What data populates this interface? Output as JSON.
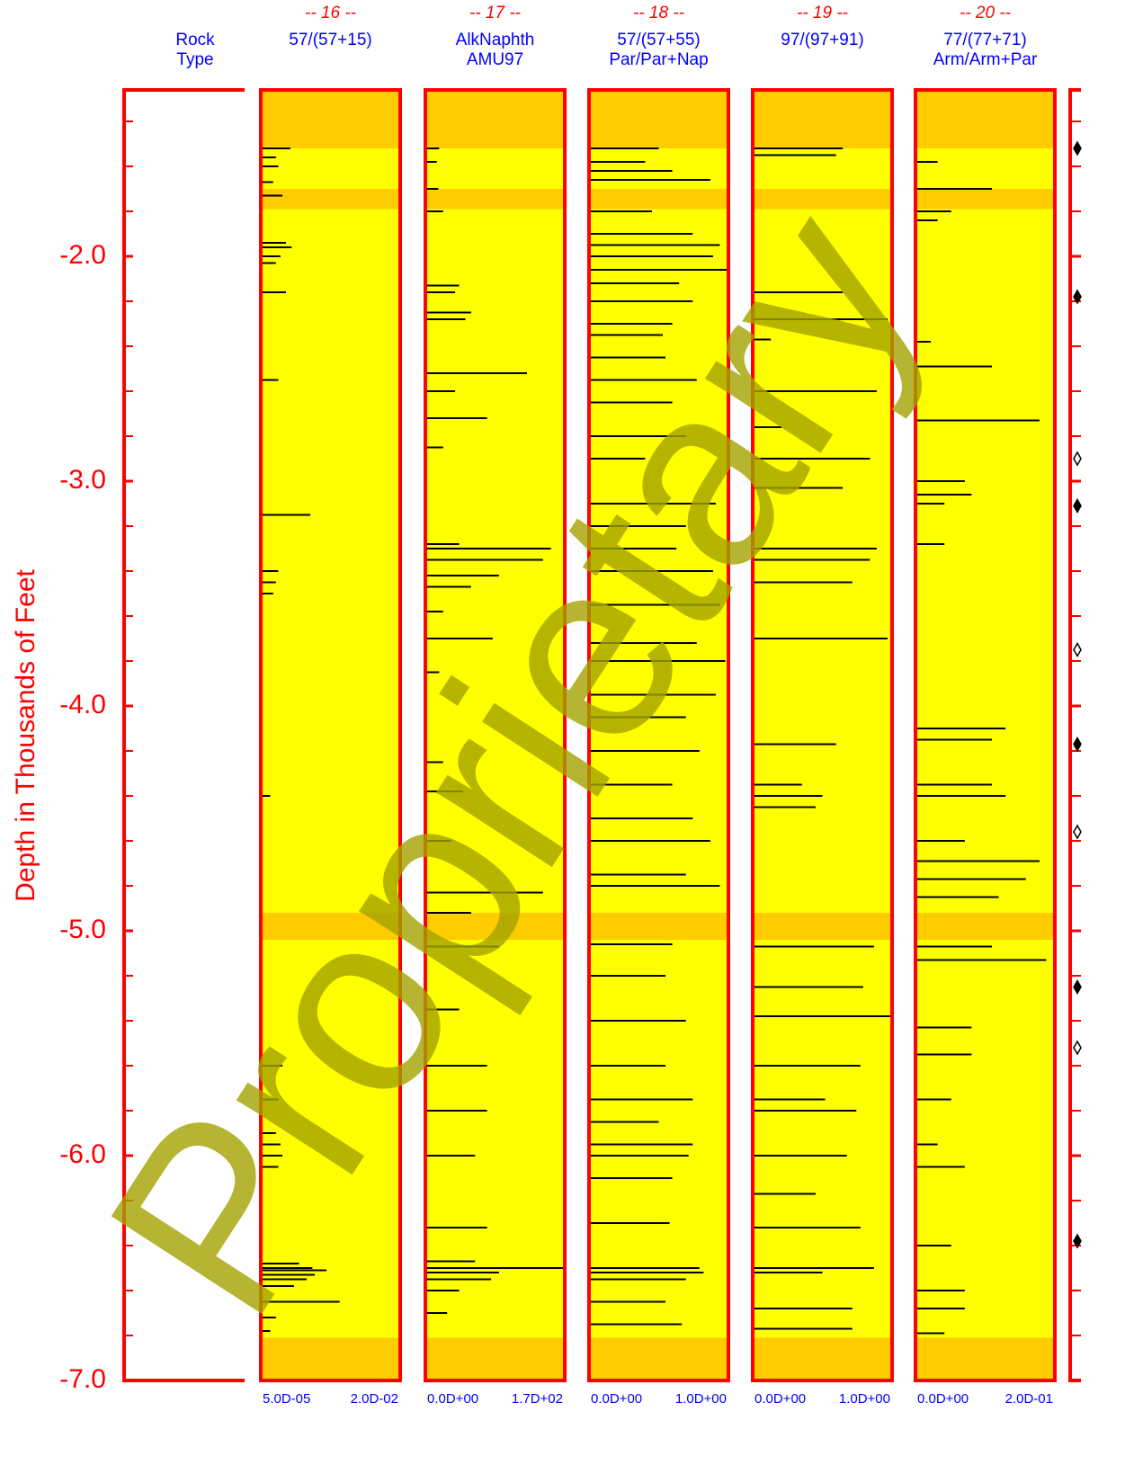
{
  "chart_data": {
    "type": "well-log",
    "y_label": "Depth in Thousands of Feet",
    "ylim": [
      -1.26,
      -7.0
    ],
    "yticks": [
      {
        "value": -2,
        "label": "-2.0"
      },
      {
        "value": -3,
        "label": "-3.0"
      },
      {
        "value": -4,
        "label": "-4.0"
      },
      {
        "value": -5,
        "label": "-5.0"
      },
      {
        "value": -6,
        "label": "-6.0"
      },
      {
        "value": -7,
        "label": "-7.0"
      }
    ],
    "yminorticks": [
      -1.4,
      -1.6,
      -1.8,
      -2.2,
      -2.4,
      -2.6,
      -2.8,
      -3.2,
      -3.4,
      -3.6,
      -3.8,
      -4.2,
      -4.4,
      -4.6,
      -4.8,
      -5.2,
      -5.4,
      -5.6,
      -5.8,
      -6.2,
      -6.4,
      -6.6,
      -6.8
    ],
    "axis_color": "#ff0000",
    "rock_type_lines": [
      "Rock",
      "Type"
    ],
    "track_fill": "#ffff00",
    "band_color": "#ffcc00",
    "bands": [
      [
        -1.26,
        -1.52
      ],
      [
        -1.7,
        -1.79
      ],
      [
        -4.92,
        -5.04
      ],
      [
        -6.81,
        -7.0
      ]
    ],
    "bar_color": "#000000",
    "watermark": "Proprietary",
    "tracks": [
      {
        "number": "-- 16 --",
        "title_lines": [
          "57/(57+15)"
        ],
        "log": true,
        "xlim": [
          5e-05,
          0.02
        ],
        "xticks": [
          {
            "value": 5e-05,
            "label": "5.0D-05"
          },
          {
            "value": 0.02,
            "label": "2.0D-02"
          }
        ],
        "depths": [
          -1.52,
          -1.56,
          -1.6,
          -1.67,
          -1.73,
          -1.94,
          -1.96,
          -2.0,
          -2.03,
          -2.16,
          -2.55,
          -3.15,
          -3.4,
          -3.45,
          -3.5,
          -4.4,
          -5.6,
          -5.75,
          -5.9,
          -5.95,
          -6.0,
          -6.05,
          -6.48,
          -6.5,
          -6.51,
          -6.53,
          -6.55,
          -6.58,
          -6.65,
          -6.72,
          -6.78
        ],
        "values": [
          0.00017,
          9e-05,
          0.0001,
          8e-05,
          0.00012,
          0.00014,
          0.00018,
          0.00011,
          9e-05,
          0.00014,
          0.0001,
          0.00041,
          0.0001,
          9e-05,
          8e-05,
          7e-05,
          0.00012,
          0.0001,
          9e-05,
          0.00011,
          0.00012,
          0.0001,
          0.00025,
          0.00045,
          0.00084,
          0.0005,
          0.00035,
          0.0002,
          0.0015,
          9e-05,
          7e-05
        ]
      },
      {
        "number": "-- 17 --",
        "title_lines": [
          "AlkNaphth",
          "AMU97"
        ],
        "log": false,
        "xlim": [
          0,
          170
        ],
        "xticks": [
          {
            "value": 0,
            "label": "0.0D+00"
          },
          {
            "value": 170,
            "label": "1.7D+02"
          }
        ],
        "depths": [
          -1.52,
          -1.58,
          -1.7,
          -1.8,
          -2.13,
          -2.16,
          -2.25,
          -2.28,
          -2.52,
          -2.6,
          -2.72,
          -2.85,
          -3.28,
          -3.3,
          -3.35,
          -3.42,
          -3.47,
          -3.58,
          -3.7,
          -3.85,
          -4.25,
          -4.38,
          -4.6,
          -4.83,
          -4.92,
          -5.07,
          -5.35,
          -5.6,
          -5.8,
          -6.0,
          -6.32,
          -6.47,
          -6.5,
          -6.52,
          -6.55,
          -6.6,
          -6.7
        ],
        "values": [
          15,
          12,
          14,
          20,
          40,
          35,
          55,
          48,
          125,
          35,
          75,
          20,
          40,
          155,
          145,
          90,
          55,
          20,
          82,
          15,
          20,
          45,
          30,
          145,
          55,
          90,
          40,
          75,
          75,
          60,
          75,
          60,
          170,
          90,
          80,
          40,
          25
        ]
      },
      {
        "number": "-- 18 --",
        "title_lines": [
          "57/(57+55)",
          "Par/Par+Nap"
        ],
        "log": false,
        "xlim": [
          0,
          1
        ],
        "xticks": [
          {
            "value": 0,
            "label": "0.0D+00"
          },
          {
            "value": 1,
            "label": "1.0D+00"
          }
        ],
        "depths": [
          -1.52,
          -1.58,
          -1.62,
          -1.66,
          -1.8,
          -1.9,
          -1.95,
          -2.0,
          -2.06,
          -2.12,
          -2.2,
          -2.3,
          -2.35,
          -2.45,
          -2.55,
          -2.65,
          -2.8,
          -2.9,
          -3.1,
          -3.2,
          -3.3,
          -3.4,
          -3.55,
          -3.72,
          -3.8,
          -3.95,
          -4.05,
          -4.2,
          -4.35,
          -4.5,
          -4.6,
          -4.75,
          -4.8,
          -5.06,
          -5.2,
          -5.4,
          -5.6,
          -5.75,
          -5.85,
          -5.95,
          -6.0,
          -6.1,
          -6.3,
          -6.5,
          -6.52,
          -6.55,
          -6.65,
          -6.75
        ],
        "values": [
          0.5,
          0.4,
          0.6,
          0.88,
          0.45,
          0.75,
          0.95,
          0.9,
          1.0,
          0.65,
          0.75,
          0.6,
          0.53,
          0.55,
          0.78,
          0.6,
          0.7,
          0.4,
          0.92,
          0.7,
          0.63,
          0.9,
          0.95,
          0.78,
          0.99,
          0.92,
          0.7,
          0.8,
          0.6,
          0.75,
          0.88,
          0.7,
          0.95,
          0.6,
          0.55,
          0.7,
          0.55,
          0.75,
          0.5,
          0.75,
          0.72,
          0.6,
          0.58,
          0.8,
          0.83,
          0.7,
          0.55,
          0.67
        ]
      },
      {
        "number": "-- 19 --",
        "title_lines": [
          "97/(97+91)"
        ],
        "log": false,
        "xlim": [
          0,
          1
        ],
        "xticks": [
          {
            "value": 0,
            "label": "0.0D+00"
          },
          {
            "value": 1,
            "label": "1.0D+00"
          }
        ],
        "depths": [
          -1.52,
          -1.55,
          -2.16,
          -2.28,
          -2.37,
          -2.6,
          -2.76,
          -2.9,
          -3.03,
          -3.3,
          -3.35,
          -3.45,
          -3.7,
          -4.17,
          -4.35,
          -4.4,
          -4.45,
          -5.07,
          -5.25,
          -5.38,
          -5.6,
          -5.75,
          -5.8,
          -6.0,
          -6.17,
          -6.32,
          -6.5,
          -6.52,
          -6.68,
          -6.77
        ],
        "values": [
          0.65,
          0.6,
          0.65,
          0.98,
          0.12,
          0.9,
          0.2,
          0.85,
          0.65,
          0.9,
          0.85,
          0.72,
          0.98,
          0.6,
          0.35,
          0.5,
          0.45,
          0.88,
          0.8,
          1.0,
          0.78,
          0.52,
          0.75,
          0.68,
          0.45,
          0.78,
          0.88,
          0.5,
          0.72,
          0.72
        ]
      },
      {
        "number": "-- 20 --",
        "title_lines": [
          "77/(77+71)",
          "Arm/Arm+Par"
        ],
        "log": false,
        "xlim": [
          0,
          0.2
        ],
        "xticks": [
          {
            "value": 0,
            "label": "0.0D+00"
          },
          {
            "value": 0.2,
            "label": "2.0D-01"
          }
        ],
        "depths": [
          -1.58,
          -1.7,
          -1.8,
          -1.84,
          -2.38,
          -2.49,
          -2.73,
          -3.0,
          -3.06,
          -3.1,
          -3.28,
          -4.1,
          -4.15,
          -4.35,
          -4.4,
          -4.6,
          -4.69,
          -4.77,
          -4.85,
          -5.07,
          -5.13,
          -5.43,
          -5.55,
          -5.75,
          -5.95,
          -6.05,
          -6.4,
          -6.6,
          -6.68,
          -6.79
        ],
        "values": [
          0.03,
          0.11,
          0.05,
          0.03,
          0.02,
          0.11,
          0.18,
          0.07,
          0.08,
          0.04,
          0.04,
          0.13,
          0.11,
          0.11,
          0.13,
          0.07,
          0.18,
          0.16,
          0.12,
          0.11,
          0.19,
          0.08,
          0.08,
          0.05,
          0.03,
          0.07,
          0.05,
          0.07,
          0.07,
          0.04
        ]
      }
    ],
    "markers": {
      "depths": [
        -1.52,
        -2.18,
        -2.9,
        -3.11,
        -3.75,
        -4.17,
        -4.56,
        -5.25,
        -5.52,
        -6.38
      ],
      "filled": [
        true,
        true,
        false,
        true,
        false,
        true,
        false,
        true,
        false,
        true
      ]
    }
  }
}
